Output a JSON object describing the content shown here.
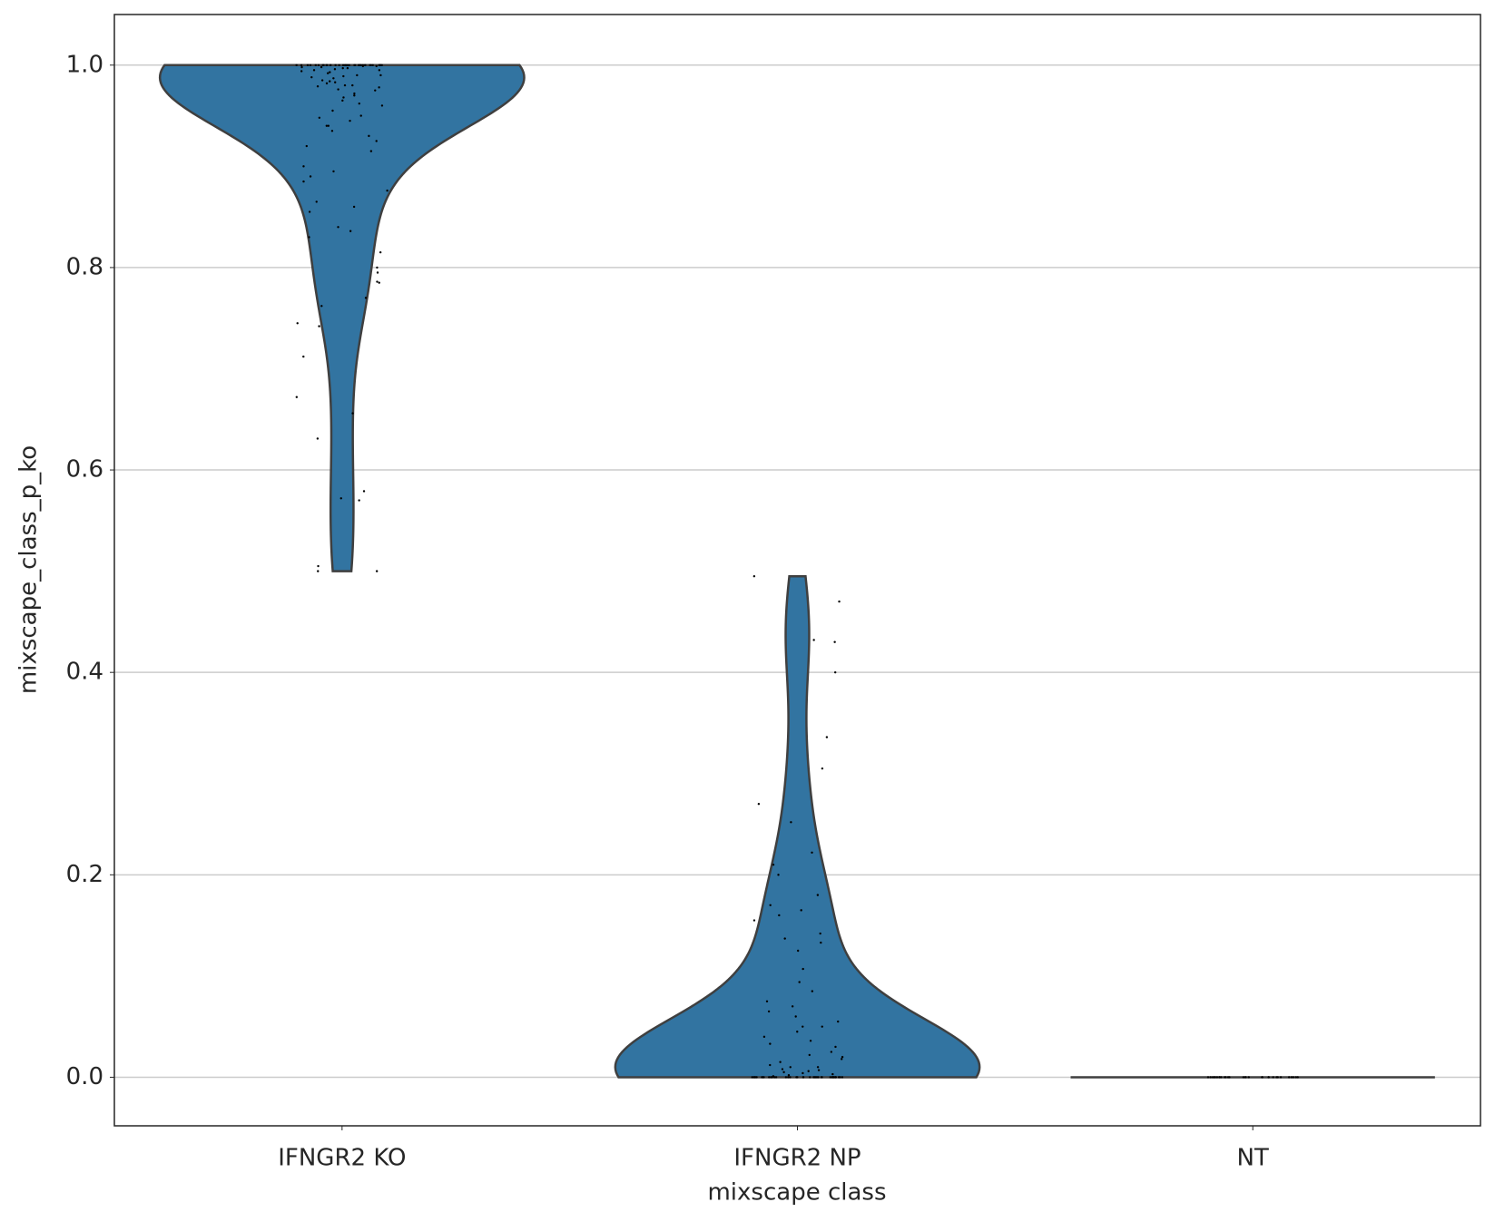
{
  "chart_data": {
    "type": "violin",
    "xlabel": "mixscape class",
    "ylabel": "mixscape_class_p_ko",
    "categories": [
      "IFNGR2 KO",
      "IFNGR2 NP",
      "NT"
    ],
    "color": "#3274a1",
    "ylim": [
      -0.048,
      1.05
    ],
    "yticks": [
      {
        "value": 0,
        "label": "0.0"
      },
      {
        "value": 0.2,
        "label": "0.2"
      },
      {
        "value": 0.4,
        "label": "0.4"
      },
      {
        "value": 0.6,
        "label": "0.6"
      },
      {
        "value": 0.8,
        "label": "0.8"
      },
      {
        "value": 1,
        "label": "1.0"
      }
    ],
    "grid": true,
    "series": [
      {
        "name": "IFNGR2 KO",
        "values": [
          1,
          1,
          1,
          1,
          1,
          1,
          1,
          1,
          1,
          1,
          1,
          1,
          1,
          1,
          1,
          1,
          1,
          1,
          1,
          1,
          1,
          1,
          1,
          1,
          1,
          1,
          1,
          1,
          1,
          1,
          1,
          1,
          1,
          1,
          1,
          1,
          1,
          1,
          1,
          1,
          0.999,
          0.999,
          0.998,
          0.998,
          0.997,
          0.997,
          0.996,
          0.995,
          0.995,
          0.994,
          0.993,
          0.992,
          0.99,
          0.99,
          0.989,
          0.988,
          0.987,
          0.985,
          0.984,
          0.983,
          0.982,
          0.98,
          0.98,
          0.979,
          0.978,
          0.976,
          0.975,
          0.972,
          0.97,
          0.968,
          0.965,
          0.962,
          0.96,
          0.955,
          0.95,
          0.948,
          0.945,
          0.94,
          0.94,
          0.935,
          0.93,
          0.925,
          0.92,
          0.915,
          0.9,
          0.895,
          0.89,
          0.885,
          0.876,
          0.865,
          0.86,
          0.855,
          0.84,
          0.836,
          0.83,
          0.815,
          0.8,
          0.795,
          0.786,
          0.785,
          0.77,
          0.762,
          0.745,
          0.742,
          0.712,
          0.672,
          0.656,
          0.631,
          0.579,
          0.572,
          0.57,
          0.505,
          0.5,
          0.5
        ]
      },
      {
        "name": "IFNGR2 NP",
        "values": [
          0,
          0,
          0,
          0,
          0,
          0,
          0,
          0,
          0,
          0,
          0,
          0,
          0,
          0,
          0,
          0,
          0,
          0,
          0,
          0,
          0,
          0,
          0,
          0,
          0,
          0,
          0,
          0,
          0,
          0,
          0,
          0,
          0,
          0,
          0,
          0,
          0,
          0,
          0,
          0,
          0.001,
          0.002,
          0.003,
          0.004,
          0.005,
          0.006,
          0.007,
          0.008,
          0.01,
          0.01,
          0.012,
          0.015,
          0.018,
          0.02,
          0.022,
          0.025,
          0.03,
          0.033,
          0.036,
          0.04,
          0.045,
          0.05,
          0.05,
          0.055,
          0.06,
          0.065,
          0.07,
          0.075,
          0.085,
          0.094,
          0.107,
          0.125,
          0.133,
          0.137,
          0.142,
          0.155,
          0.16,
          0.165,
          0.17,
          0.18,
          0.2,
          0.21,
          0.222,
          0.252,
          0.27,
          0.305,
          0.336,
          0.4,
          0.43,
          0.432,
          0.47,
          0.495
        ]
      },
      {
        "name": "NT",
        "values": [
          0,
          0,
          0,
          0,
          0,
          0,
          0,
          0,
          0,
          0,
          0,
          0,
          0,
          0,
          0,
          0,
          0,
          0,
          0,
          0,
          0,
          0,
          0,
          0,
          0,
          0,
          0,
          0,
          0,
          0
        ]
      }
    ]
  }
}
